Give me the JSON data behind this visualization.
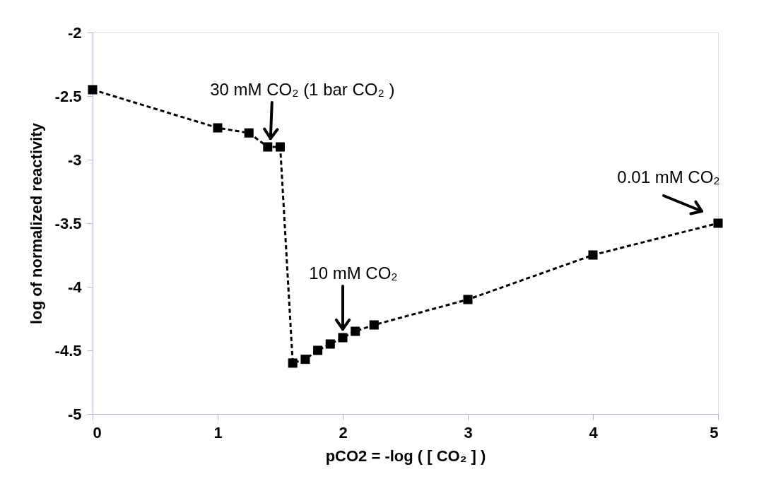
{
  "chart_data": {
    "type": "line",
    "xlabel": "pCO2 = -log  ( [ CO₂ ] )",
    "ylabel": "log of normalized reactivity",
    "x": [
      0,
      1,
      1.25,
      1.4,
      1.5,
      1.6,
      1.7,
      1.8,
      1.9,
      2.0,
      2.1,
      2.25,
      3,
      4,
      5
    ],
    "series": [
      {
        "color": "#000000",
        "values": [
          -2.45,
          -2.75,
          -2.79,
          -2.9,
          -2.9,
          -4.6,
          -4.57,
          -4.5,
          -4.45,
          -4.4,
          -4.35,
          -4.3,
          -4.1,
          -3.75,
          -3.5
        ]
      }
    ],
    "xlim": [
      0,
      5
    ],
    "xticks": [
      0,
      1,
      2,
      3,
      4,
      5
    ],
    "ylim": [
      -5,
      -2
    ],
    "yticks": [
      -5,
      -4.5,
      -4,
      -3.5,
      -3,
      -2.5,
      -2
    ],
    "annotations": [
      {
        "text": "30 mM CO₂ (1 bar CO₂ )",
        "x": 1.4,
        "y": -2.9
      },
      "10 mM CO₂",
      {
        "text": "0.01 mM CO₂",
        "x": 5,
        "y": -3.5
      }
    ],
    "grid": false,
    "marker": "square",
    "line_style": "dashed"
  }
}
